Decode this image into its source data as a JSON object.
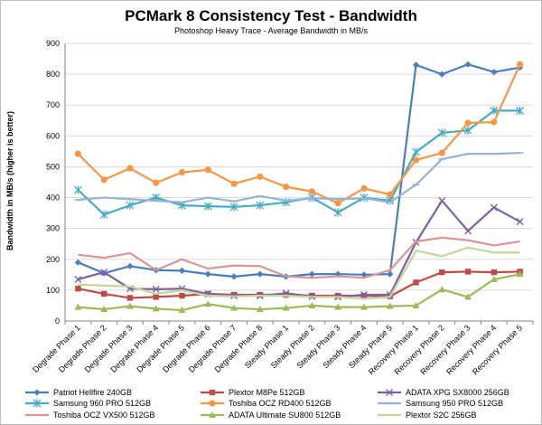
{
  "chart_data": {
    "type": "line",
    "title": "PCMark 8 Consistency Test - Bandwidth",
    "subtitle": "Photoshop Heavy Trace - Average Bandwidth in MB/s",
    "xlabel": "",
    "ylabel": "Bandwidth in MB/s (higher is better)",
    "ylim": [
      0,
      900
    ],
    "yticks": [
      0,
      100,
      200,
      300,
      400,
      500,
      600,
      700,
      800,
      900
    ],
    "grid": true,
    "legend_position": "bottom",
    "categories": [
      "Degrade Phase 1",
      "Degrade Phase 2",
      "Degrade Phase 3",
      "Degrade Phase 4",
      "Degrade Phase 5",
      "Degrade Phase 6",
      "Degrade Phase 7",
      "Degrade Phase 8",
      "Steady Phase 1",
      "Steady Phase 2",
      "Steady Phase 3",
      "Steady Phase 4",
      "Steady Phase 5",
      "Recovery Phase 1",
      "Recovery Phase 2",
      "Recovery Phase 3",
      "Recovery Phase 4",
      "Recovery Phase 5"
    ],
    "series": [
      {
        "name": "Patriot Hellfire 240GB",
        "color": "#4a7ebb",
        "marker": "diamond",
        "values": [
          190,
          155,
          178,
          165,
          163,
          152,
          144,
          152,
          144,
          152,
          152,
          150,
          152,
          830,
          800,
          832,
          807,
          822
        ]
      },
      {
        "name": "Plextor M8Pe 512GB",
        "color": "#be4b48",
        "marker": "square",
        "values": [
          105,
          88,
          75,
          78,
          82,
          88,
          85,
          85,
          85,
          82,
          82,
          82,
          80,
          125,
          158,
          160,
          158,
          160
        ]
      },
      {
        "name": "ADATA XPG SX8000 256GB",
        "color": "#7d60a0",
        "marker": "x",
        "values": [
          135,
          158,
          105,
          103,
          105,
          88,
          82,
          82,
          90,
          80,
          78,
          85,
          85,
          255,
          390,
          292,
          368,
          322
        ]
      },
      {
        "name": "Samsung 960 PRO 512GB",
        "color": "#46aac5",
        "marker": "star",
        "values": [
          425,
          345,
          375,
          400,
          375,
          372,
          370,
          375,
          385,
          400,
          352,
          400,
          390,
          548,
          610,
          618,
          682,
          682
        ]
      },
      {
        "name": "Toshiba OCZ RD400 512GB",
        "color": "#f79646",
        "marker": "circle",
        "values": [
          542,
          458,
          495,
          448,
          482,
          490,
          445,
          468,
          435,
          420,
          382,
          430,
          410,
          522,
          545,
          642,
          645,
          832
        ]
      },
      {
        "name": "Samsung 950 PRO 512GB",
        "color": "#96b3d5",
        "marker": "dash",
        "values": [
          393,
          400,
          395,
          390,
          385,
          400,
          388,
          405,
          390,
          398,
          395,
          398,
          385,
          442,
          525,
          542,
          542,
          545
        ]
      },
      {
        "name": "Toshiba OCZ VX500 512GB",
        "color": "#d99694",
        "marker": "none",
        "values": [
          215,
          205,
          220,
          165,
          200,
          170,
          180,
          178,
          145,
          140,
          145,
          140,
          165,
          258,
          270,
          262,
          245,
          258
        ]
      },
      {
        "name": "ADATA Ultimate SU800 512GB",
        "color": "#9bbb59",
        "marker": "triangle",
        "values": [
          45,
          38,
          48,
          40,
          35,
          55,
          42,
          38,
          42,
          50,
          45,
          45,
          48,
          50,
          102,
          78,
          135,
          152
        ]
      },
      {
        "name": "Plextor S2C 256GB",
        "color": "#c3d69b",
        "marker": "none",
        "values": [
          118,
          115,
          112,
          88,
          100,
          82,
          80,
          82,
          82,
          78,
          78,
          72,
          78,
          228,
          210,
          238,
          222,
          222
        ]
      }
    ]
  }
}
